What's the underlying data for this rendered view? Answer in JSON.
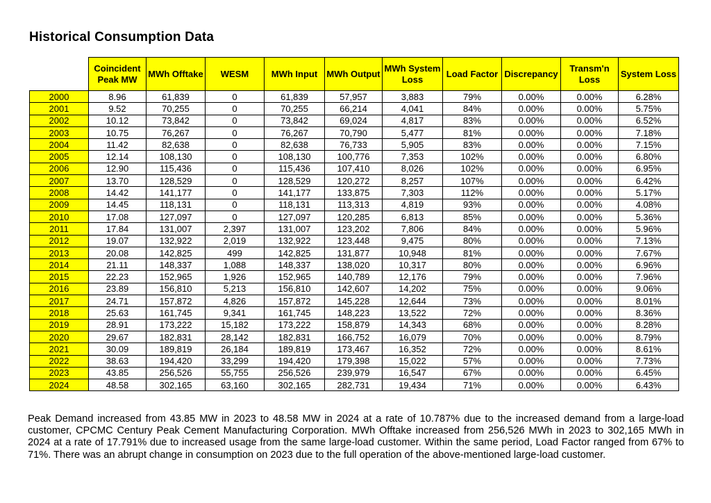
{
  "page": {
    "title": "Historical Consumption Data"
  },
  "colors": {
    "header_fill": "#FFFF00",
    "border": "#000000",
    "text": "#000000",
    "background": "#FFFFFF"
  },
  "table": {
    "columns": [
      "Coincident Peak MW",
      "MWh Offtake",
      "WESM",
      "MWh Input",
      "MWh Output",
      "MWh System Loss",
      "Load Factor",
      "Discrepancy",
      "Transm'n Loss",
      "System Loss"
    ],
    "rows": [
      {
        "year": "2000",
        "values": [
          "8.96",
          "61,839",
          "0",
          "61,839",
          "57,957",
          "3,883",
          "79%",
          "0.00%",
          "0.00%",
          "6.28%"
        ]
      },
      {
        "year": "2001",
        "values": [
          "9.52",
          "70,255",
          "0",
          "70,255",
          "66,214",
          "4,041",
          "84%",
          "0.00%",
          "0.00%",
          "5.75%"
        ]
      },
      {
        "year": "2002",
        "values": [
          "10.12",
          "73,842",
          "0",
          "73,842",
          "69,024",
          "4,817",
          "83%",
          "0.00%",
          "0.00%",
          "6.52%"
        ]
      },
      {
        "year": "2003",
        "values": [
          "10.75",
          "76,267",
          "0",
          "76,267",
          "70,790",
          "5,477",
          "81%",
          "0.00%",
          "0.00%",
          "7.18%"
        ]
      },
      {
        "year": "2004",
        "values": [
          "11.42",
          "82,638",
          "0",
          "82,638",
          "76,733",
          "5,905",
          "83%",
          "0.00%",
          "0.00%",
          "7.15%"
        ]
      },
      {
        "year": "2005",
        "values": [
          "12.14",
          "108,130",
          "0",
          "108,130",
          "100,776",
          "7,353",
          "102%",
          "0.00%",
          "0.00%",
          "6.80%"
        ]
      },
      {
        "year": "2006",
        "values": [
          "12.90",
          "115,436",
          "0",
          "115,436",
          "107,410",
          "8,026",
          "102%",
          "0.00%",
          "0.00%",
          "6.95%"
        ]
      },
      {
        "year": "2007",
        "values": [
          "13.70",
          "128,529",
          "0",
          "128,529",
          "120,272",
          "8,257",
          "107%",
          "0.00%",
          "0.00%",
          "6.42%"
        ]
      },
      {
        "year": "2008",
        "values": [
          "14.42",
          "141,177",
          "0",
          "141,177",
          "133,875",
          "7,303",
          "112%",
          "0.00%",
          "0.00%",
          "5.17%"
        ]
      },
      {
        "year": "2009",
        "values": [
          "14.45",
          "118,131",
          "0",
          "118,131",
          "113,313",
          "4,819",
          "93%",
          "0.00%",
          "0.00%",
          "4.08%"
        ]
      },
      {
        "year": "2010",
        "values": [
          "17.08",
          "127,097",
          "0",
          "127,097",
          "120,285",
          "6,813",
          "85%",
          "0.00%",
          "0.00%",
          "5.36%"
        ]
      },
      {
        "year": "2011",
        "values": [
          "17.84",
          "131,007",
          "2,397",
          "131,007",
          "123,202",
          "7,806",
          "84%",
          "0.00%",
          "0.00%",
          "5.96%"
        ]
      },
      {
        "year": "2012",
        "values": [
          "19.07",
          "132,922",
          "2,019",
          "132,922",
          "123,448",
          "9,475",
          "80%",
          "0.00%",
          "0.00%",
          "7.13%"
        ]
      },
      {
        "year": "2013",
        "values": [
          "20.08",
          "142,825",
          "499",
          "142,825",
          "131,877",
          "10,948",
          "81%",
          "0.00%",
          "0.00%",
          "7.67%"
        ]
      },
      {
        "year": "2014",
        "values": [
          "21.11",
          "148,337",
          "1,088",
          "148,337",
          "138,020",
          "10,317",
          "80%",
          "0.00%",
          "0.00%",
          "6.96%"
        ]
      },
      {
        "year": "2015",
        "values": [
          "22.23",
          "152,965",
          "1,926",
          "152,965",
          "140,789",
          "12,176",
          "79%",
          "0.00%",
          "0.00%",
          "7.96%"
        ]
      },
      {
        "year": "2016",
        "values": [
          "23.89",
          "156,810",
          "5,213",
          "156,810",
          "142,607",
          "14,202",
          "75%",
          "0.00%",
          "0.00%",
          "9.06%"
        ]
      },
      {
        "year": "2017",
        "values": [
          "24.71",
          "157,872",
          "4,826",
          "157,872",
          "145,228",
          "12,644",
          "73%",
          "0.00%",
          "0.00%",
          "8.01%"
        ]
      },
      {
        "year": "2018",
        "values": [
          "25.63",
          "161,745",
          "9,341",
          "161,745",
          "148,223",
          "13,522",
          "72%",
          "0.00%",
          "0.00%",
          "8.36%"
        ]
      },
      {
        "year": "2019",
        "values": [
          "28.91",
          "173,222",
          "15,182",
          "173,222",
          "158,879",
          "14,343",
          "68%",
          "0.00%",
          "0.00%",
          "8.28%"
        ]
      },
      {
        "year": "2020",
        "values": [
          "29.67",
          "182,831",
          "28,142",
          "182,831",
          "166,752",
          "16,079",
          "70%",
          "0.00%",
          "0.00%",
          "8.79%"
        ]
      },
      {
        "year": "2021",
        "values": [
          "30.09",
          "189,819",
          "26,184",
          "189,819",
          "173,467",
          "16,352",
          "72%",
          "0.00%",
          "0.00%",
          "8.61%"
        ]
      },
      {
        "year": "2022",
        "values": [
          "38.63",
          "194,420",
          "33,299",
          "194,420",
          "179,398",
          "15,022",
          "57%",
          "0.00%",
          "0.00%",
          "7.73%"
        ]
      },
      {
        "year": "2023",
        "values": [
          "43.85",
          "256,526",
          "55,755",
          "256,526",
          "239,979",
          "16,547",
          "67%",
          "0.00%",
          "0.00%",
          "6.45%"
        ]
      },
      {
        "year": "2024",
        "values": [
          "48.58",
          "302,165",
          "63,160",
          "302,165",
          "282,731",
          "19,434",
          "71%",
          "0.00%",
          "0.00%",
          "6.43%"
        ]
      }
    ]
  },
  "summary": {
    "text": "Peak Demand increased from 43.85 MW in 2023 to 48.58 MW in 2024 at a rate of 10.787% due to the increased demand from a large-load customer, CPCMC Century Peak Cement Manufacturing Corporation. MWh Offtake increased from 256,526 MWh in 2023 to 302,165 MWh in 2024 at a rate of 17.791% due to increased usage from the same large-load customer. Within the same period, Load Factor ranged from 67% to 71%. There was an abrupt change in consumption on 2023 due to the full operation of the above-mentioned large-load customer."
  }
}
